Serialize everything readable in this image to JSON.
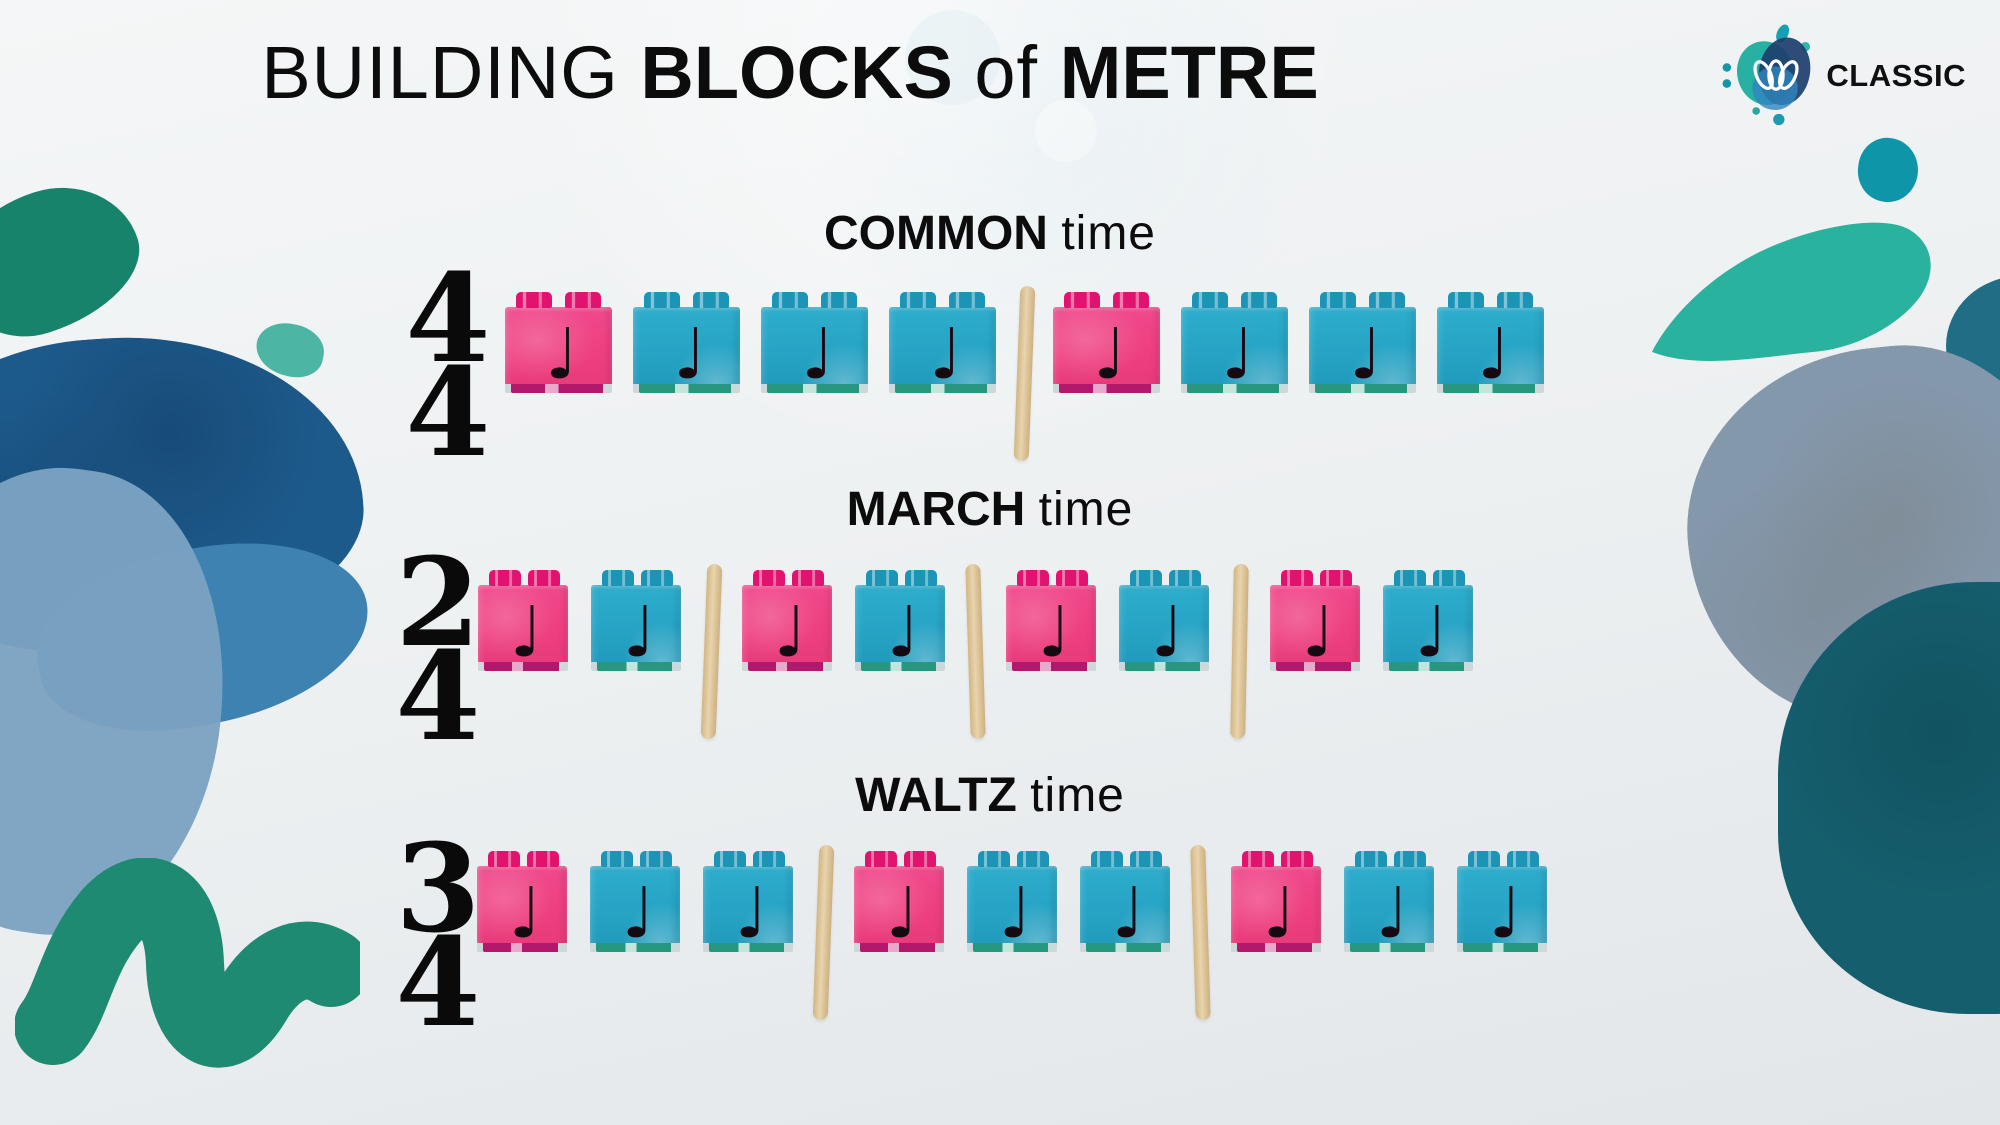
{
  "header": {
    "title": {
      "light1": "BUILDING",
      "bold1": "BLOCKS",
      "light2": "of",
      "bold2": "METRE"
    },
    "logo": {
      "brand": "CLASSIC"
    }
  },
  "sections": [
    {
      "name_bold": "COMMON",
      "name_light": "time",
      "sig_top": "4",
      "sig_bottom": "4",
      "pattern": [
        "pink",
        "blue",
        "blue",
        "blue",
        "bar",
        "pink",
        "blue",
        "blue",
        "blue"
      ]
    },
    {
      "name_bold": "MARCH",
      "name_light": "time",
      "sig_top": "2",
      "sig_bottom": "4",
      "pattern": [
        "pink",
        "blue",
        "bar",
        "pink",
        "blue",
        "bar",
        "pink",
        "blue",
        "bar",
        "pink",
        "blue"
      ]
    },
    {
      "name_bold": "WALTZ",
      "name_light": "time",
      "sig_top": "3",
      "sig_bottom": "4",
      "pattern": [
        "pink",
        "blue",
        "blue",
        "bar",
        "pink",
        "blue",
        "blue",
        "bar",
        "pink",
        "blue",
        "blue"
      ]
    }
  ],
  "note_glyph": "♩",
  "colors": {
    "brick_pink": "#ee3f80",
    "brick_pink_stud": "#e2126f",
    "brick_pink_base": "#b2186b",
    "brick_blue": "#26a3c4",
    "brick_blue_stud": "#1b94b6",
    "brick_blue_base": "#27987f",
    "stick": "#e8d4ad",
    "teal_accent": "#1f8a72",
    "navy_accent": "#1d5a8c"
  }
}
